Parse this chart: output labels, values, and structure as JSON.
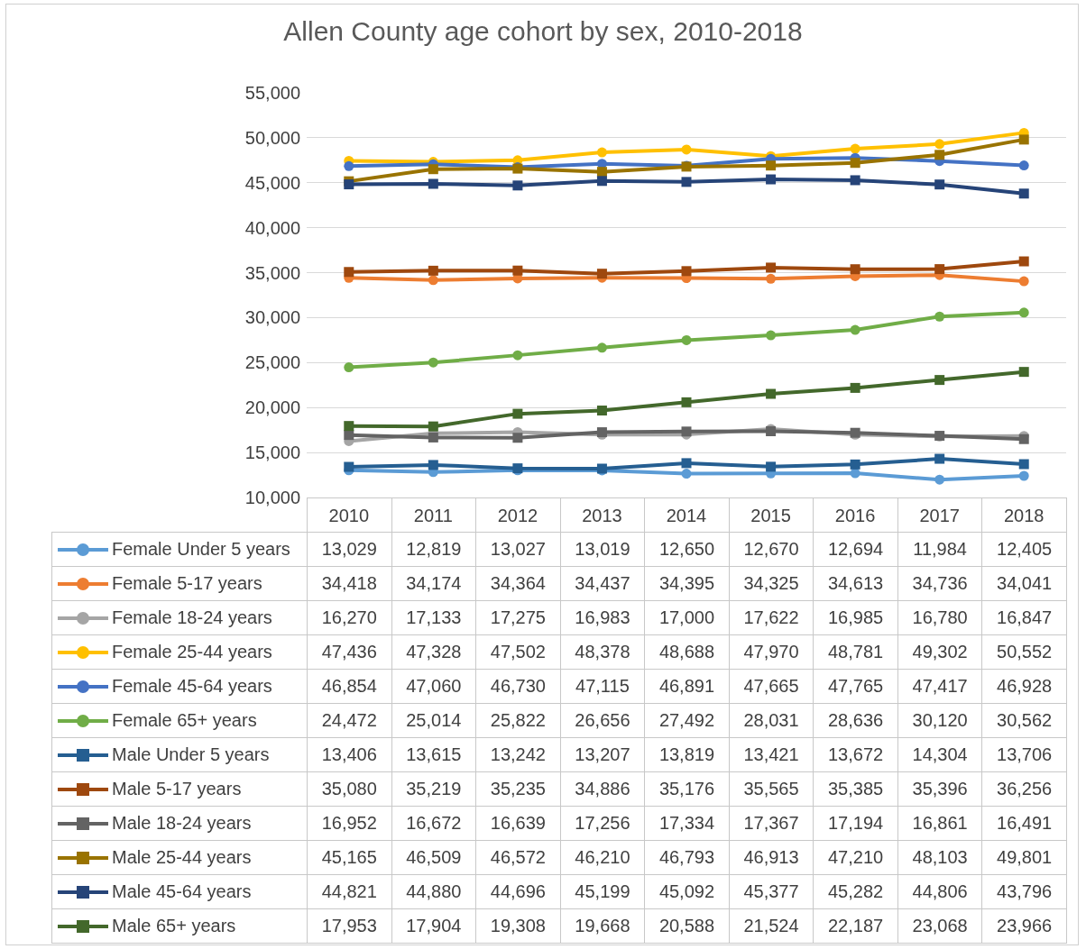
{
  "chart_data": {
    "type": "line",
    "title": "Allen County age cohort by sex, 2010-2018",
    "categories": [
      "2010",
      "2011",
      "2012",
      "2013",
      "2014",
      "2015",
      "2016",
      "2017",
      "2018"
    ],
    "ylim": [
      10000,
      55000
    ],
    "yticks": [
      {
        "value": 10000,
        "label": "10,000"
      },
      {
        "value": 15000,
        "label": "15,000"
      },
      {
        "value": 20000,
        "label": "20,000"
      },
      {
        "value": 25000,
        "label": "25,000"
      },
      {
        "value": 30000,
        "label": "30,000"
      },
      {
        "value": 35000,
        "label": "35,000"
      },
      {
        "value": 40000,
        "label": "40,000"
      },
      {
        "value": 45000,
        "label": "45,000"
      },
      {
        "value": 50000,
        "label": "50,000"
      },
      {
        "value": 55000,
        "label": "55,000"
      }
    ],
    "grid": "y",
    "legend": "bottom left",
    "line_style": "solid",
    "series": [
      {
        "name": "Female Under 5 years",
        "color": "#5b9bd5",
        "marker": "circle",
        "values": [
          13029,
          12819,
          13027,
          13019,
          12650,
          12670,
          12694,
          11984,
          12405
        ],
        "value_labels": [
          "13,029",
          "12,819",
          "13,027",
          "13,019",
          "12,650",
          "12,670",
          "12,694",
          "11,984",
          "12,405"
        ]
      },
      {
        "name": "Female 5-17 years",
        "color": "#ed7d31",
        "marker": "circle",
        "values": [
          34418,
          34174,
          34364,
          34437,
          34395,
          34325,
          34613,
          34736,
          34041
        ],
        "value_labels": [
          "34,418",
          "34,174",
          "34,364",
          "34,437",
          "34,395",
          "34,325",
          "34,613",
          "34,736",
          "34,041"
        ]
      },
      {
        "name": "Female 18-24 years",
        "color": "#a5a5a5",
        "marker": "circle",
        "values": [
          16270,
          17133,
          17275,
          16983,
          17000,
          17622,
          16985,
          16780,
          16847
        ],
        "value_labels": [
          "16,270",
          "17,133",
          "17,275",
          "16,983",
          "17,000",
          "17,622",
          "16,985",
          "16,780",
          "16,847"
        ]
      },
      {
        "name": "Female 25-44 years",
        "color": "#ffc000",
        "marker": "circle",
        "values": [
          47436,
          47328,
          47502,
          48378,
          48688,
          47970,
          48781,
          49302,
          50552
        ],
        "value_labels": [
          "47,436",
          "47,328",
          "47,502",
          "48,378",
          "48,688",
          "47,970",
          "48,781",
          "49,302",
          "50,552"
        ]
      },
      {
        "name": "Female 45-64 years",
        "color": "#4472c4",
        "marker": "circle",
        "values": [
          46854,
          47060,
          46730,
          47115,
          46891,
          47665,
          47765,
          47417,
          46928
        ],
        "value_labels": [
          "46,854",
          "47,060",
          "46,730",
          "47,115",
          "46,891",
          "47,665",
          "47,765",
          "47,417",
          "46,928"
        ]
      },
      {
        "name": "Female 65+ years",
        "color": "#70ad47",
        "marker": "circle",
        "values": [
          24472,
          25014,
          25822,
          26656,
          27492,
          28031,
          28636,
          30120,
          30562
        ],
        "value_labels": [
          "24,472",
          "25,014",
          "25,822",
          "26,656",
          "27,492",
          "28,031",
          "28,636",
          "30,120",
          "30,562"
        ]
      },
      {
        "name": "Male Under 5 years",
        "color": "#255e91",
        "marker": "square",
        "values": [
          13406,
          13615,
          13242,
          13207,
          13819,
          13421,
          13672,
          14304,
          13706
        ],
        "value_labels": [
          "13,406",
          "13,615",
          "13,242",
          "13,207",
          "13,819",
          "13,421",
          "13,672",
          "14,304",
          "13,706"
        ]
      },
      {
        "name": "Male 5-17 years",
        "color": "#9e480e",
        "marker": "square",
        "values": [
          35080,
          35219,
          35235,
          34886,
          35176,
          35565,
          35385,
          35396,
          36256
        ],
        "value_labels": [
          "35,080",
          "35,219",
          "35,235",
          "34,886",
          "35,176",
          "35,565",
          "35,385",
          "35,396",
          "36,256"
        ]
      },
      {
        "name": "Male 18-24 years",
        "color": "#636363",
        "marker": "square",
        "values": [
          16952,
          16672,
          16639,
          17256,
          17334,
          17367,
          17194,
          16861,
          16491
        ],
        "value_labels": [
          "16,952",
          "16,672",
          "16,639",
          "17,256",
          "17,334",
          "17,367",
          "17,194",
          "16,861",
          "16,491"
        ]
      },
      {
        "name": "Male 25-44 years",
        "color": "#997300",
        "marker": "square",
        "values": [
          45165,
          46509,
          46572,
          46210,
          46793,
          46913,
          47210,
          48103,
          49801
        ],
        "value_labels": [
          "45,165",
          "46,509",
          "46,572",
          "46,210",
          "46,793",
          "46,913",
          "47,210",
          "48,103",
          "49,801"
        ]
      },
      {
        "name": "Male 45-64 years",
        "color": "#264478",
        "marker": "square",
        "values": [
          44821,
          44880,
          44696,
          45199,
          45092,
          45377,
          45282,
          44806,
          43796
        ],
        "value_labels": [
          "44,821",
          "44,880",
          "44,696",
          "45,199",
          "45,092",
          "45,377",
          "45,282",
          "44,806",
          "43,796"
        ]
      },
      {
        "name": "Male 65+ years",
        "color": "#43682b",
        "marker": "square",
        "values": [
          17953,
          17904,
          19308,
          19668,
          20588,
          21524,
          22187,
          23068,
          23966
        ],
        "value_labels": [
          "17,953",
          "17,904",
          "19,308",
          "19,668",
          "20,588",
          "21,524",
          "22,187",
          "23,068",
          "23,966"
        ]
      }
    ]
  }
}
